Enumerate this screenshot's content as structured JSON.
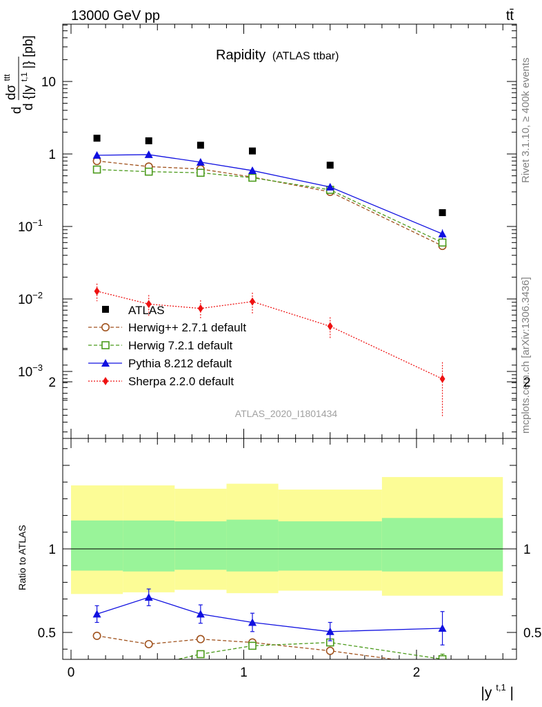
{
  "header": {
    "energy": "13000 GeV pp",
    "process": "tt̄",
    "title_main": "Rapidity",
    "title_sub": "(ATLAS ttbar)"
  },
  "side": {
    "rivet": "Rivet 3.1.10, ≥ 400k events",
    "mcplots": "mcplots.cern.ch [arXiv:1306.3436]"
  },
  "watermark": "ATLAS_2020_I1801434",
  "chart_data": [
    {
      "type": "scatter",
      "panel": "main",
      "yscale": "log",
      "ylim": [
        0.0001,
        60
      ],
      "xlim": [
        -0.04,
        2.55
      ],
      "ylabel_top": "dσ",
      "ylabel_top_sup": "ttt",
      "ylabel_bottom": "d {|y",
      "ylabel_bottom_sup": "t,1",
      "ylabel_bottom_tail": "|} [pb]",
      "yticks": [
        {
          "value": 10,
          "base": "10",
          "exp": ""
        },
        {
          "value": 1,
          "base": "1",
          "exp": ""
        },
        {
          "value": 0.1,
          "base": "10",
          "exp": "−1"
        },
        {
          "value": 0.01,
          "base": "10",
          "exp": "−2"
        },
        {
          "value": 0.001,
          "base": "10",
          "exp": "−3"
        }
      ],
      "x": [
        0.15,
        0.45,
        0.75,
        1.05,
        1.5,
        2.15
      ],
      "data_series": {
        "name": "ATLAS",
        "values": [
          1.65,
          1.52,
          1.32,
          1.1,
          0.7,
          0.155
        ]
      },
      "series": [
        {
          "name": "Herwig++ 2.7.1 default",
          "color": "#a0521d",
          "marker": "circle",
          "dash": "5,3",
          "values": [
            0.8,
            0.67,
            0.62,
            0.48,
            0.3,
            0.054
          ],
          "err": [
            0,
            0,
            0,
            0,
            0,
            0
          ]
        },
        {
          "name": "Herwig 7.2.1 default",
          "color": "#4a9a1a",
          "marker": "square",
          "dash": "5,3",
          "values": [
            0.61,
            0.57,
            0.55,
            0.47,
            0.32,
            0.06
          ],
          "err": [
            0,
            0,
            0,
            0,
            0,
            0
          ]
        },
        {
          "name": "Pythia 8.212 default",
          "color": "#1010e0",
          "marker": "triangle",
          "dash": "",
          "values": [
            0.96,
            0.98,
            0.77,
            0.59,
            0.35,
            0.079
          ],
          "err": [
            0.06,
            0.06,
            0.05,
            0.04,
            0.03,
            0.012
          ]
        },
        {
          "name": "Sherpa 2.2.0 default",
          "color": "#ee1111",
          "marker": "diamond",
          "dash": "2,2",
          "values": [
            0.0128,
            0.0085,
            0.0074,
            0.0092,
            0.0042,
            0.00079
          ],
          "err": [
            0.0035,
            0.0028,
            0.0022,
            0.003,
            0.0014,
            0.00055
          ]
        }
      ]
    },
    {
      "type": "scatter",
      "panel": "ratio",
      "ylabel": "Ratio to ATLAS",
      "ylim": [
        0.34,
        2.34
      ],
      "yticks": [
        {
          "value": 2,
          "label": "2"
        },
        {
          "value": 1,
          "label": "1"
        },
        {
          "value": 0.5,
          "label": "0.5"
        }
      ],
      "xlabel": "|y",
      "xlabel_sup": "t,1",
      "xlabel_tail": "|",
      "xticks": [
        {
          "value": 0,
          "label": "0"
        },
        {
          "value": 1,
          "label": "1"
        },
        {
          "value": 2,
          "label": "2"
        }
      ],
      "bins": [
        0,
        0.3,
        0.6,
        0.9,
        1.2,
        1.8,
        2.5
      ],
      "band_inner": [
        [
          0.87,
          1.17
        ],
        [
          0.865,
          1.17
        ],
        [
          0.875,
          1.165
        ],
        [
          0.865,
          1.175
        ],
        [
          0.87,
          1.165
        ],
        [
          0.865,
          1.185
        ]
      ],
      "band_outer": [
        [
          0.73,
          1.38
        ],
        [
          0.74,
          1.38
        ],
        [
          0.755,
          1.36
        ],
        [
          0.735,
          1.39
        ],
        [
          0.75,
          1.355
        ],
        [
          0.72,
          1.43
        ]
      ],
      "band_inner_color": "#99f499",
      "band_outer_color": "#fcfc96",
      "x": [
        0.15,
        0.45,
        0.75,
        1.05,
        1.5,
        2.15
      ],
      "series": [
        {
          "name": "Herwig++ 2.7.1 default",
          "color": "#a0521d",
          "marker": "circle",
          "dash": "5,3",
          "values": [
            0.48,
            0.43,
            0.46,
            0.44,
            0.39,
            0.3
          ],
          "err": [
            0,
            0,
            0,
            0,
            0,
            0
          ]
        },
        {
          "name": "Herwig 7.2.1 default",
          "color": "#4a9a1a",
          "marker": "square",
          "dash": "5,3",
          "values": [
            0.3,
            0.3,
            0.37,
            0.42,
            0.44,
            0.34
          ],
          "err": [
            0,
            0,
            0,
            0,
            0,
            0.03
          ]
        },
        {
          "name": "Pythia 8.212 default",
          "color": "#1010e0",
          "marker": "triangle",
          "dash": "",
          "values": [
            0.61,
            0.71,
            0.61,
            0.56,
            0.505,
            0.525
          ],
          "err": [
            0.05,
            0.05,
            0.055,
            0.055,
            0.055,
            0.1
          ]
        }
      ]
    }
  ]
}
